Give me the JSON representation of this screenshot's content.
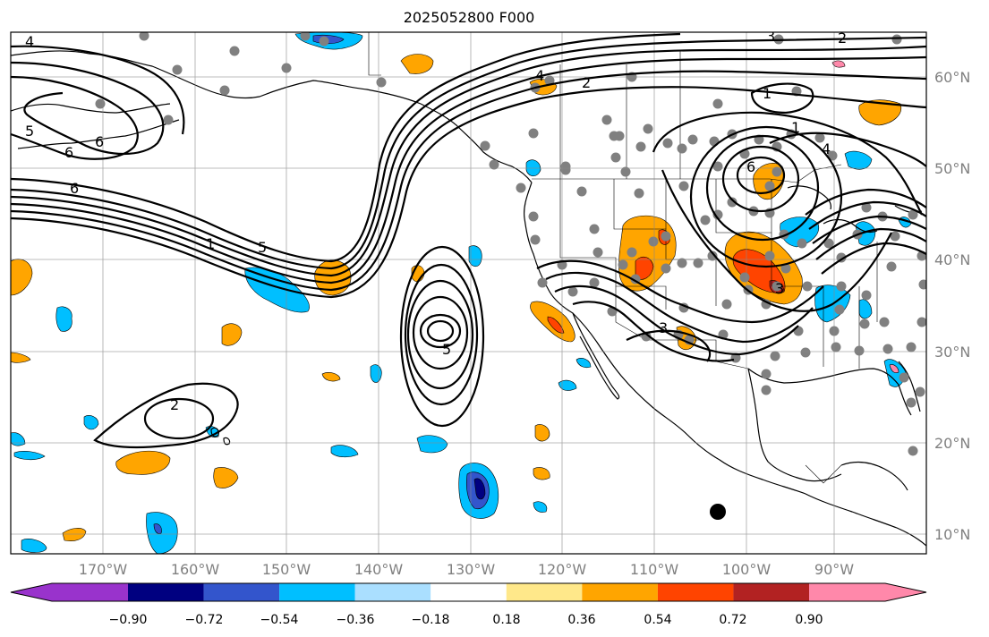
{
  "title": "2025052800 F000",
  "lat_labels": [
    "60°N",
    "50°N",
    "40°N",
    "30°N",
    "20°N",
    "10°N"
  ],
  "lon_labels": [
    "170°W",
    "160°W",
    "150°W",
    "140°W",
    "130°W",
    "120°W",
    "110°W",
    "100°W",
    "90°W"
  ],
  "colorbar": {
    "ticks": [
      "−0.90",
      "−0.72",
      "−0.54",
      "−0.36",
      "−0.18",
      "0.18",
      "0.36",
      "0.54",
      "0.72",
      "0.90"
    ],
    "colors": [
      "#9933cc",
      "#000080",
      "#3355cc",
      "#00bfff",
      "#aadfff",
      "#ffffff",
      "#ffe88a",
      "#ffa500",
      "#ff4400",
      "#b22222",
      "#ff88aa"
    ]
  },
  "contour_labels": [
    "4",
    "5",
    "6",
    "6",
    "6",
    "5",
    "1",
    "2",
    "3",
    "4",
    "5",
    "1",
    "2",
    "3",
    "1",
    "4",
    "6",
    "3",
    "2"
  ]
}
